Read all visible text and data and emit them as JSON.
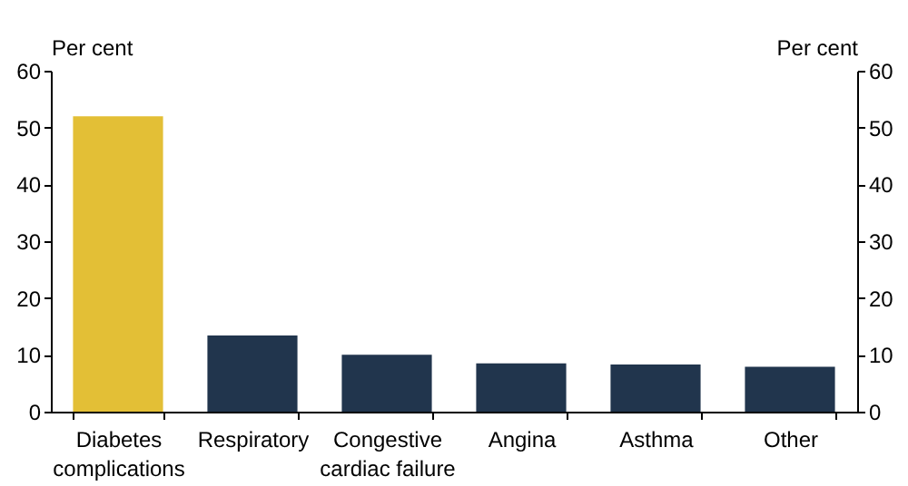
{
  "chart_data": {
    "type": "bar",
    "categories": [
      "Diabetes complications",
      "Respiratory",
      "Congestive cardiac failure",
      "Angina",
      "Asthma",
      "Other"
    ],
    "values": [
      52,
      13.4,
      10,
      8.5,
      8.3,
      7.9
    ],
    "colors": [
      "#e3bf36",
      "#21354d",
      "#21354d",
      "#21354d",
      "#21354d",
      "#21354d"
    ],
    "ylabel": "Per cent",
    "y2label": "Per cent",
    "ylim": [
      0,
      60
    ],
    "yticks": [
      0,
      10,
      20,
      30,
      40,
      50,
      60
    ],
    "y2lim": [
      0,
      60
    ],
    "y2ticks": [
      0,
      10,
      20,
      30,
      40,
      50,
      60
    ],
    "grid": false
  }
}
